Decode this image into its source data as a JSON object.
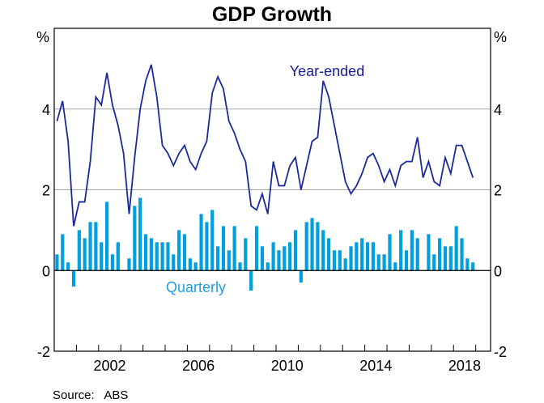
{
  "chart_data": {
    "type": "bar+line",
    "title": "GDP Growth",
    "xlabel": "",
    "ylabel_left": "%",
    "ylabel_right": "%",
    "ylim": [
      -2,
      6
    ],
    "yticks": [
      -2,
      0,
      2,
      4
    ],
    "ytick_labels": [
      "-2",
      "0",
      "2",
      "4"
    ],
    "gridlines_at": [
      2,
      4
    ],
    "xlim_years": [
      2000,
      2019.67
    ],
    "xtick_years": [
      2000,
      2001,
      2002,
      2003,
      2004,
      2005,
      2006,
      2007,
      2008,
      2009,
      2010,
      2011,
      2012,
      2013,
      2014,
      2015,
      2016,
      2017,
      2018,
      2019
    ],
    "xtick_labels": [
      {
        "year": 2002,
        "label": "2002"
      },
      {
        "year": 2006,
        "label": "2006"
      },
      {
        "year": 2010,
        "label": "2010"
      },
      {
        "year": 2014,
        "label": "2014"
      },
      {
        "year": 2018,
        "label": "2018"
      }
    ],
    "start_quarter": "2000-Q1",
    "end_quarter": "2018-Q4",
    "series": [
      {
        "name": "Quarterly",
        "type": "bar",
        "color": "#009fdf",
        "values": [
          0.4,
          0.9,
          0.2,
          -0.4,
          1.0,
          0.8,
          1.2,
          1.2,
          0.7,
          1.7,
          0.4,
          0.7,
          0.0,
          0.3,
          1.6,
          1.8,
          0.9,
          0.8,
          0.7,
          0.7,
          0.7,
          0.4,
          1.0,
          0.9,
          0.3,
          0.2,
          1.4,
          1.2,
          1.5,
          0.6,
          1.1,
          0.5,
          1.1,
          0.2,
          0.8,
          -0.5,
          1.1,
          0.6,
          0.2,
          0.7,
          0.5,
          0.6,
          0.7,
          1.0,
          -0.3,
          1.2,
          1.3,
          1.2,
          1.0,
          0.8,
          0.5,
          0.5,
          0.3,
          0.6,
          0.7,
          0.8,
          0.7,
          0.7,
          0.4,
          0.4,
          0.9,
          0.2,
          1.0,
          0.5,
          1.0,
          0.8,
          0.0,
          0.9,
          0.4,
          0.8,
          0.6,
          0.6,
          1.1,
          0.8,
          0.3,
          0.2
        ]
      },
      {
        "name": "Year-ended",
        "type": "line",
        "color": "#1a2a9e",
        "values": [
          3.7,
          4.2,
          3.2,
          1.1,
          1.7,
          1.7,
          2.7,
          4.3,
          4.1,
          4.9,
          4.1,
          3.6,
          2.9,
          1.4,
          2.8,
          4.0,
          4.7,
          5.1,
          4.3,
          3.1,
          2.9,
          2.6,
          2.9,
          3.1,
          2.7,
          2.5,
          2.9,
          3.2,
          4.4,
          4.8,
          4.5,
          3.7,
          3.4,
          3.0,
          2.7,
          1.6,
          1.5,
          1.9,
          1.4,
          2.7,
          2.1,
          2.1,
          2.6,
          2.8,
          2.0,
          2.6,
          3.2,
          3.3,
          4.7,
          4.3,
          3.6,
          2.9,
          2.2,
          1.9,
          2.1,
          2.4,
          2.8,
          2.9,
          2.6,
          2.2,
          2.5,
          2.1,
          2.6,
          2.7,
          2.7,
          3.3,
          2.3,
          2.7,
          2.2,
          2.1,
          2.8,
          2.4,
          3.1,
          3.1,
          2.7,
          2.3
        ]
      }
    ],
    "annotations": [
      {
        "text": "Year-ended",
        "series": "Year-ended",
        "placement": "above line, near 2010-2013"
      },
      {
        "text": "Quarterly",
        "series": "Quarterly",
        "placement": "below zero line, near 2005-2007"
      }
    ],
    "grid": true,
    "legend": "none (inline labels)",
    "source": "Source:   ABS"
  },
  "colors": {
    "bar": "#009fdf",
    "line": "#1a2a9e",
    "year_ended_label": "#1a1a9c",
    "quarterly_label": "#1aa0e0",
    "grid": "#a6a6a6",
    "axis": "#000000"
  }
}
